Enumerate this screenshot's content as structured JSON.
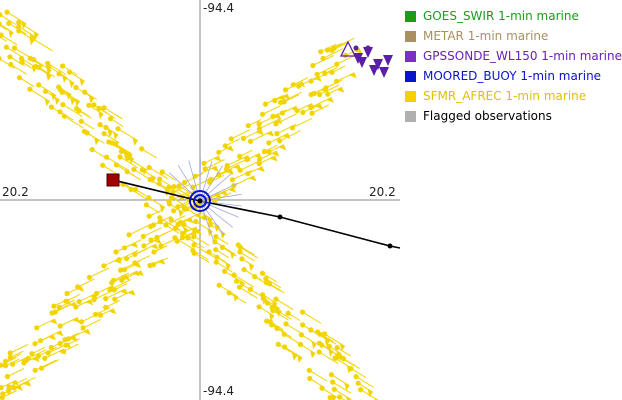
{
  "map": {
    "center_label_top": "-94.4",
    "center_label_bottom": "-94.4",
    "left_label": "20.2",
    "right_label": "20.2"
  },
  "legend": {
    "items": [
      {
        "label": "GOES_SWIR 1-min marine",
        "color": "#1a9c1a",
        "text_color": "#1a9c1a"
      },
      {
        "label": "METAR 1-min marine",
        "color": "#a89060",
        "text_color": "#a89060"
      },
      {
        "label": "GPSSONDE_WL150 1-min marine",
        "color": "#7a2fc8",
        "text_color": "#6a1fb8"
      },
      {
        "label": "MOORED_BUOY 1-min marine",
        "color": "#0a14c8",
        "text_color": "#0a14c8"
      },
      {
        "label": "SFMR_AFREC 1-min marine",
        "color": "#f5d000",
        "text_color": "#e0c000"
      },
      {
        "label": "Flagged observations",
        "color": "#b0b0b0",
        "text_color": "#000000"
      }
    ]
  },
  "colors": {
    "sfmr": "#f2d400",
    "buoy": "#0a14c8",
    "gpssonde": "#5a1fa8",
    "track": "#000000",
    "track_start": "#a00000",
    "axis": "#888888"
  }
}
